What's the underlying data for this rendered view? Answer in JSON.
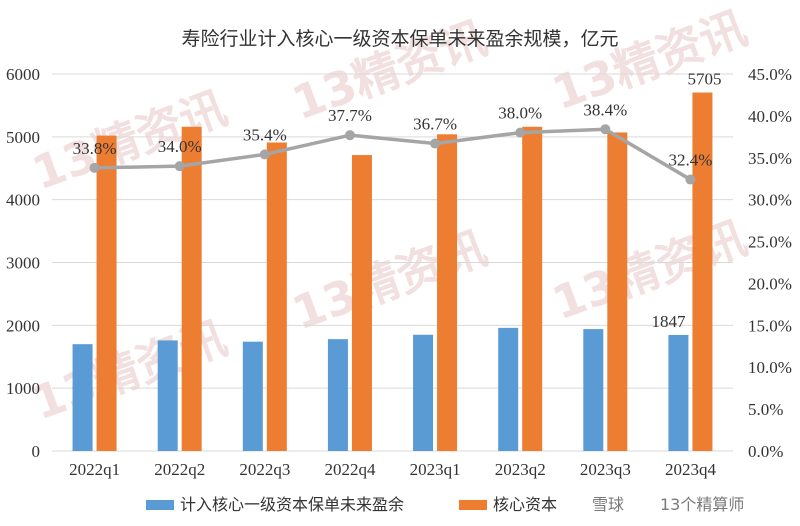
{
  "chart_data": {
    "type": "bar",
    "title": "寿险行业计入核心一级资本保单未来盈余规模，亿元",
    "categories": [
      "2022q1",
      "2022q2",
      "2022q3",
      "2022q4",
      "2023q1",
      "2023q2",
      "2023q3",
      "2023q4"
    ],
    "series": [
      {
        "name": "计入核心一级资本保单未来盈余",
        "type": "bar",
        "axis": "left",
        "color": "#5b9bd5",
        "values": [
          1700,
          1760,
          1740,
          1780,
          1850,
          1960,
          1940,
          1847
        ]
      },
      {
        "name": "核心资本",
        "type": "bar",
        "axis": "left",
        "color": "#ed7d31",
        "values": [
          5020,
          5160,
          4910,
          4710,
          5040,
          5160,
          5070,
          5705
        ]
      },
      {
        "name": "",
        "type": "line",
        "axis": "right",
        "color": "#a5a5a5",
        "values": [
          33.8,
          34.0,
          35.4,
          37.7,
          36.7,
          38.0,
          38.4,
          32.4
        ]
      }
    ],
    "data_labels": {
      "line": [
        "33.8%",
        "34.0%",
        "35.4%",
        "37.7%",
        "36.7%",
        "38.0%",
        "38.4%",
        "32.4%"
      ],
      "bar_last_blue": "1847",
      "bar_last_orange": "5705"
    },
    "ylim": [
      0,
      6000
    ],
    "y_ticks": [
      "0",
      "1000",
      "2000",
      "3000",
      "4000",
      "5000",
      "6000"
    ],
    "y2lim": [
      0,
      45
    ],
    "y2_ticks": [
      "0.0%",
      "5.0%",
      "10.0%",
      "15.0%",
      "20.0%",
      "25.0%",
      "30.0%",
      "35.0%",
      "40.0%",
      "45.0%"
    ],
    "grid": true,
    "legend": "bottom"
  },
  "watermark": "13精资讯",
  "footer": {
    "brand": "雪球",
    "author": "13个精算师"
  }
}
